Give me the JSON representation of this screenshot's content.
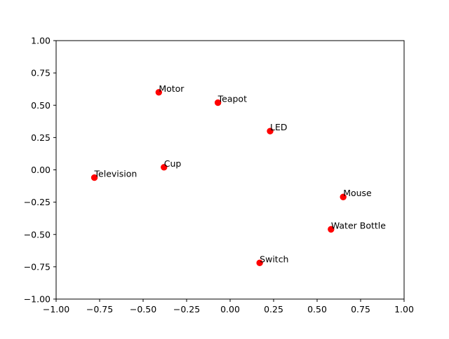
{
  "chart_data": {
    "type": "scatter",
    "title": "",
    "xlabel": "",
    "ylabel": "",
    "xlim": [
      -1.0,
      1.0
    ],
    "ylim": [
      -1.0,
      1.0
    ],
    "grid": false,
    "marker_color": "#ff0000",
    "x_ticks": [
      "−1.00",
      "−0.75",
      "−0.50",
      "−0.25",
      "0.00",
      "0.25",
      "0.50",
      "0.75",
      "1.00"
    ],
    "x_tick_values": [
      -1.0,
      -0.75,
      -0.5,
      -0.25,
      0.0,
      0.25,
      0.5,
      0.75,
      1.0
    ],
    "y_ticks": [
      "−1.00",
      "−0.75",
      "−0.50",
      "−0.25",
      "0.00",
      "0.25",
      "0.50",
      "0.75",
      "1.00"
    ],
    "y_tick_values": [
      -1.0,
      -0.75,
      -0.5,
      -0.25,
      0.0,
      0.25,
      0.5,
      0.75,
      1.0
    ],
    "points": [
      {
        "label": "Motor",
        "x": -0.41,
        "y": 0.6
      },
      {
        "label": "Teapot",
        "x": -0.07,
        "y": 0.52
      },
      {
        "label": "LED",
        "x": 0.23,
        "y": 0.3
      },
      {
        "label": "Cup",
        "x": -0.38,
        "y": 0.02
      },
      {
        "label": "Television",
        "x": -0.78,
        "y": -0.06
      },
      {
        "label": "Mouse",
        "x": 0.65,
        "y": -0.21
      },
      {
        "label": "Water Bottle",
        "x": 0.58,
        "y": -0.46
      },
      {
        "label": "Switch",
        "x": 0.17,
        "y": -0.72
      }
    ]
  }
}
